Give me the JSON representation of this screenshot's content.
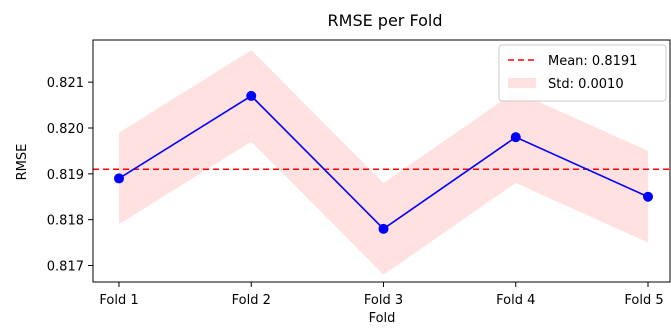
{
  "chart_data": {
    "type": "line",
    "title": "RMSE per Fold",
    "xlabel": "Fold",
    "ylabel": "RMSE",
    "categories": [
      "Fold 1",
      "Fold 2",
      "Fold 3",
      "Fold 4",
      "Fold 5"
    ],
    "series": [
      {
        "values": [
          0.8189,
          0.8207,
          0.8178,
          0.8198,
          0.8185
        ],
        "color": "#0000ff"
      }
    ],
    "mean": {
      "label": "Mean: 0.8191",
      "value": 0.8191,
      "color": "#ff0000"
    },
    "std": {
      "label": "Std: 0.0010",
      "value": 0.001,
      "color": "#ffb3b3"
    },
    "ylim": [
      0.81664,
      0.82192
    ],
    "yticks": [
      0.817,
      0.818,
      0.819,
      0.82,
      0.821
    ],
    "ytick_labels": [
      "0.817",
      "0.818",
      "0.819",
      "0.820",
      "0.821"
    ],
    "grid": false,
    "legend_position": "top-right"
  }
}
